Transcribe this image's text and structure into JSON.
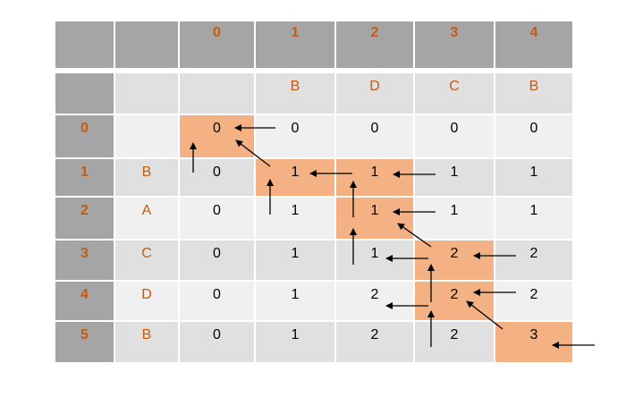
{
  "column_indices": [
    "0",
    "1",
    "2",
    "3",
    "4"
  ],
  "column_chars": [
    "B",
    "D",
    "C",
    "B"
  ],
  "row_indices": [
    "0",
    "1",
    "2",
    "3",
    "4",
    "5"
  ],
  "row_chars": [
    "B",
    "A",
    "C",
    "D",
    "B"
  ],
  "values": [
    [
      "0",
      "0",
      "0",
      "0",
      "0"
    ],
    [
      "0",
      "1",
      "1",
      "1",
      "1"
    ],
    [
      "0",
      "1",
      "1",
      "1",
      "1"
    ],
    [
      "0",
      "1",
      "1",
      "2",
      "2"
    ],
    [
      "0",
      "1",
      "2",
      "2",
      "2"
    ],
    [
      "0",
      "1",
      "2",
      "2",
      "3"
    ]
  ],
  "highlighted_cells": [
    [
      0,
      0
    ],
    [
      1,
      1
    ],
    [
      1,
      2
    ],
    [
      2,
      2
    ],
    [
      3,
      3
    ],
    [
      4,
      3
    ],
    [
      5,
      4
    ]
  ],
  "colors": {
    "header": "#A5A5A5",
    "row_light": "#F0F0F0",
    "row_mid": "#E0E0E0",
    "highlight": "#F4B183",
    "label": "#C55A11",
    "arrow": "#000000"
  }
}
